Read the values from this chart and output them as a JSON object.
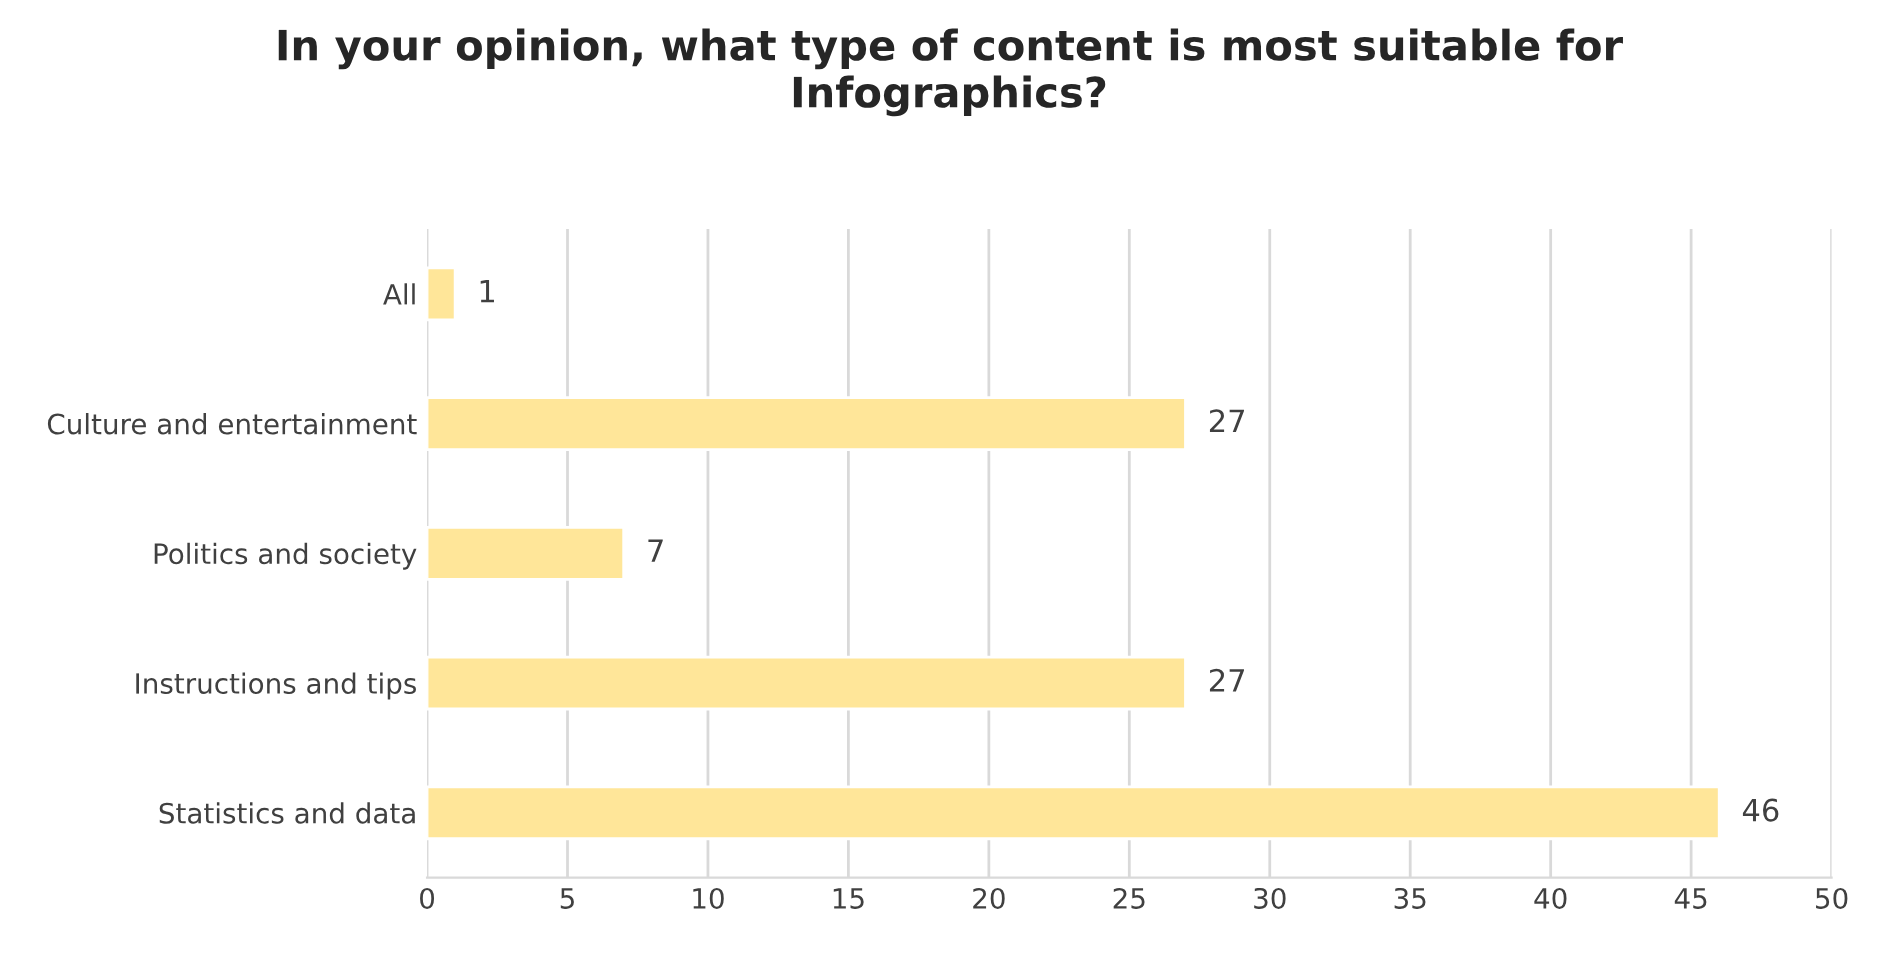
{
  "chart_data": {
    "type": "bar",
    "orientation": "horizontal",
    "title": "In your opinion, what type of content is most suitable for\nInfographics?",
    "categories": [
      "All",
      "Culture and entertainment",
      "Politics and society",
      "Instructions and tips",
      "Statistics and data"
    ],
    "values": [
      1,
      27,
      7,
      27,
      46
    ],
    "color": "#ffe699",
    "xlim": [
      0,
      50
    ],
    "xticks": [
      0,
      5,
      10,
      15,
      20,
      25,
      30,
      35,
      40,
      45,
      50
    ],
    "grid": "x",
    "data_labels": true,
    "legend": false
  }
}
